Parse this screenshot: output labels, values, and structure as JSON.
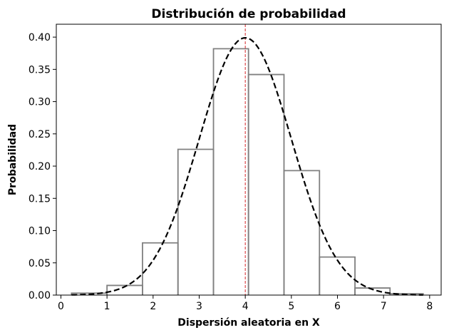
{
  "chart_data": {
    "type": "histogram",
    "title": "Distribución de probabilidad",
    "xlabel": "Dispersión aleatoria en X",
    "ylabel": "Probabilidad",
    "xlim": [
      -0.1,
      8.25
    ],
    "ylim": [
      0,
      0.42
    ],
    "x_ticks": [
      "0",
      "1",
      "2",
      "3",
      "4",
      "5",
      "6",
      "7",
      "8"
    ],
    "y_ticks": [
      "0.00",
      "0.05",
      "0.10",
      "0.15",
      "0.20",
      "0.25",
      "0.30",
      "0.35",
      "0.40"
    ],
    "histogram": {
      "bin_edges": [
        0.23,
        1.0,
        1.77,
        2.54,
        3.31,
        4.07,
        4.84,
        5.61,
        6.38,
        7.14,
        7.86
      ],
      "values": [
        0.003,
        0.015,
        0.081,
        0.226,
        0.382,
        0.342,
        0.193,
        0.059,
        0.011,
        0.002
      ],
      "color": "#808080"
    },
    "normal_curve": {
      "mean": 4.0,
      "std": 1.0,
      "x_range": [
        0.23,
        7.86
      ],
      "style": "dashed",
      "color": "#000000"
    },
    "mean_line": {
      "x": 4.0,
      "style": "dashed",
      "color": "#d62728"
    },
    "grid": false,
    "legend": "none"
  }
}
